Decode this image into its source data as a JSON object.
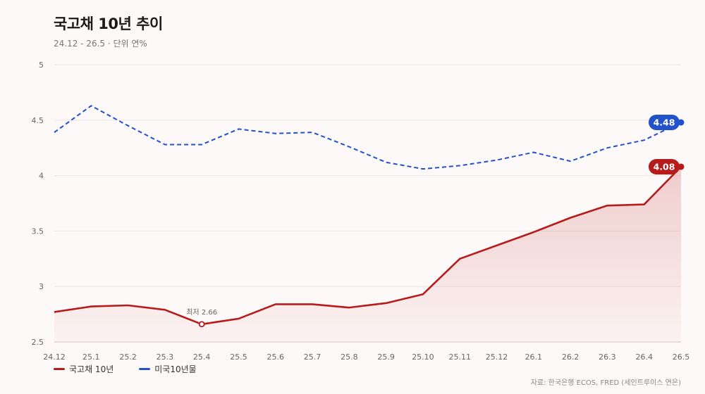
{
  "title": "국고채 10년 추이",
  "subtitle": "24.12 - 26.5 · 단위 연%",
  "source": "자료: 한국은행 ECOS, FRED (세인트루이스 연은)",
  "colors": {
    "korea": "#b71c1c",
    "us": "#2251cc",
    "grid": "#ece6e4",
    "background": "#fdf9f8"
  },
  "chart_data": {
    "type": "line",
    "categories": [
      "24.12",
      "25.1",
      "25.2",
      "25.3",
      "25.4",
      "25.5",
      "25.6",
      "25.7",
      "25.8",
      "25.9",
      "25.10",
      "25.11",
      "25.12",
      "26.1",
      "26.2",
      "26.3",
      "26.4",
      "26.5"
    ],
    "ylim": [
      2.5,
      5
    ],
    "yticks": [
      "2.5",
      "3",
      "3.5",
      "4",
      "4.5",
      "5"
    ],
    "grid": true,
    "legend_position": "bottom-left",
    "series": [
      {
        "name": "국고채 10년",
        "style": "solid-area",
        "color": "#b71c1c",
        "values": [
          2.77,
          2.82,
          2.83,
          2.79,
          2.66,
          2.71,
          2.84,
          2.84,
          2.81,
          2.85,
          2.93,
          3.25,
          3.37,
          3.49,
          3.62,
          3.73,
          3.74,
          4.08
        ],
        "end_label": "4.08"
      },
      {
        "name": "미국10년물",
        "style": "dashed",
        "color": "#2251cc",
        "values": [
          4.39,
          4.63,
          4.45,
          4.28,
          4.28,
          4.42,
          4.38,
          4.39,
          4.26,
          4.12,
          4.06,
          4.09,
          4.14,
          4.21,
          4.13,
          4.25,
          4.32,
          4.48
        ],
        "end_label": "4.48"
      }
    ],
    "annotations": [
      {
        "series": 0,
        "index": 4,
        "text": "최저 2.66"
      }
    ]
  }
}
